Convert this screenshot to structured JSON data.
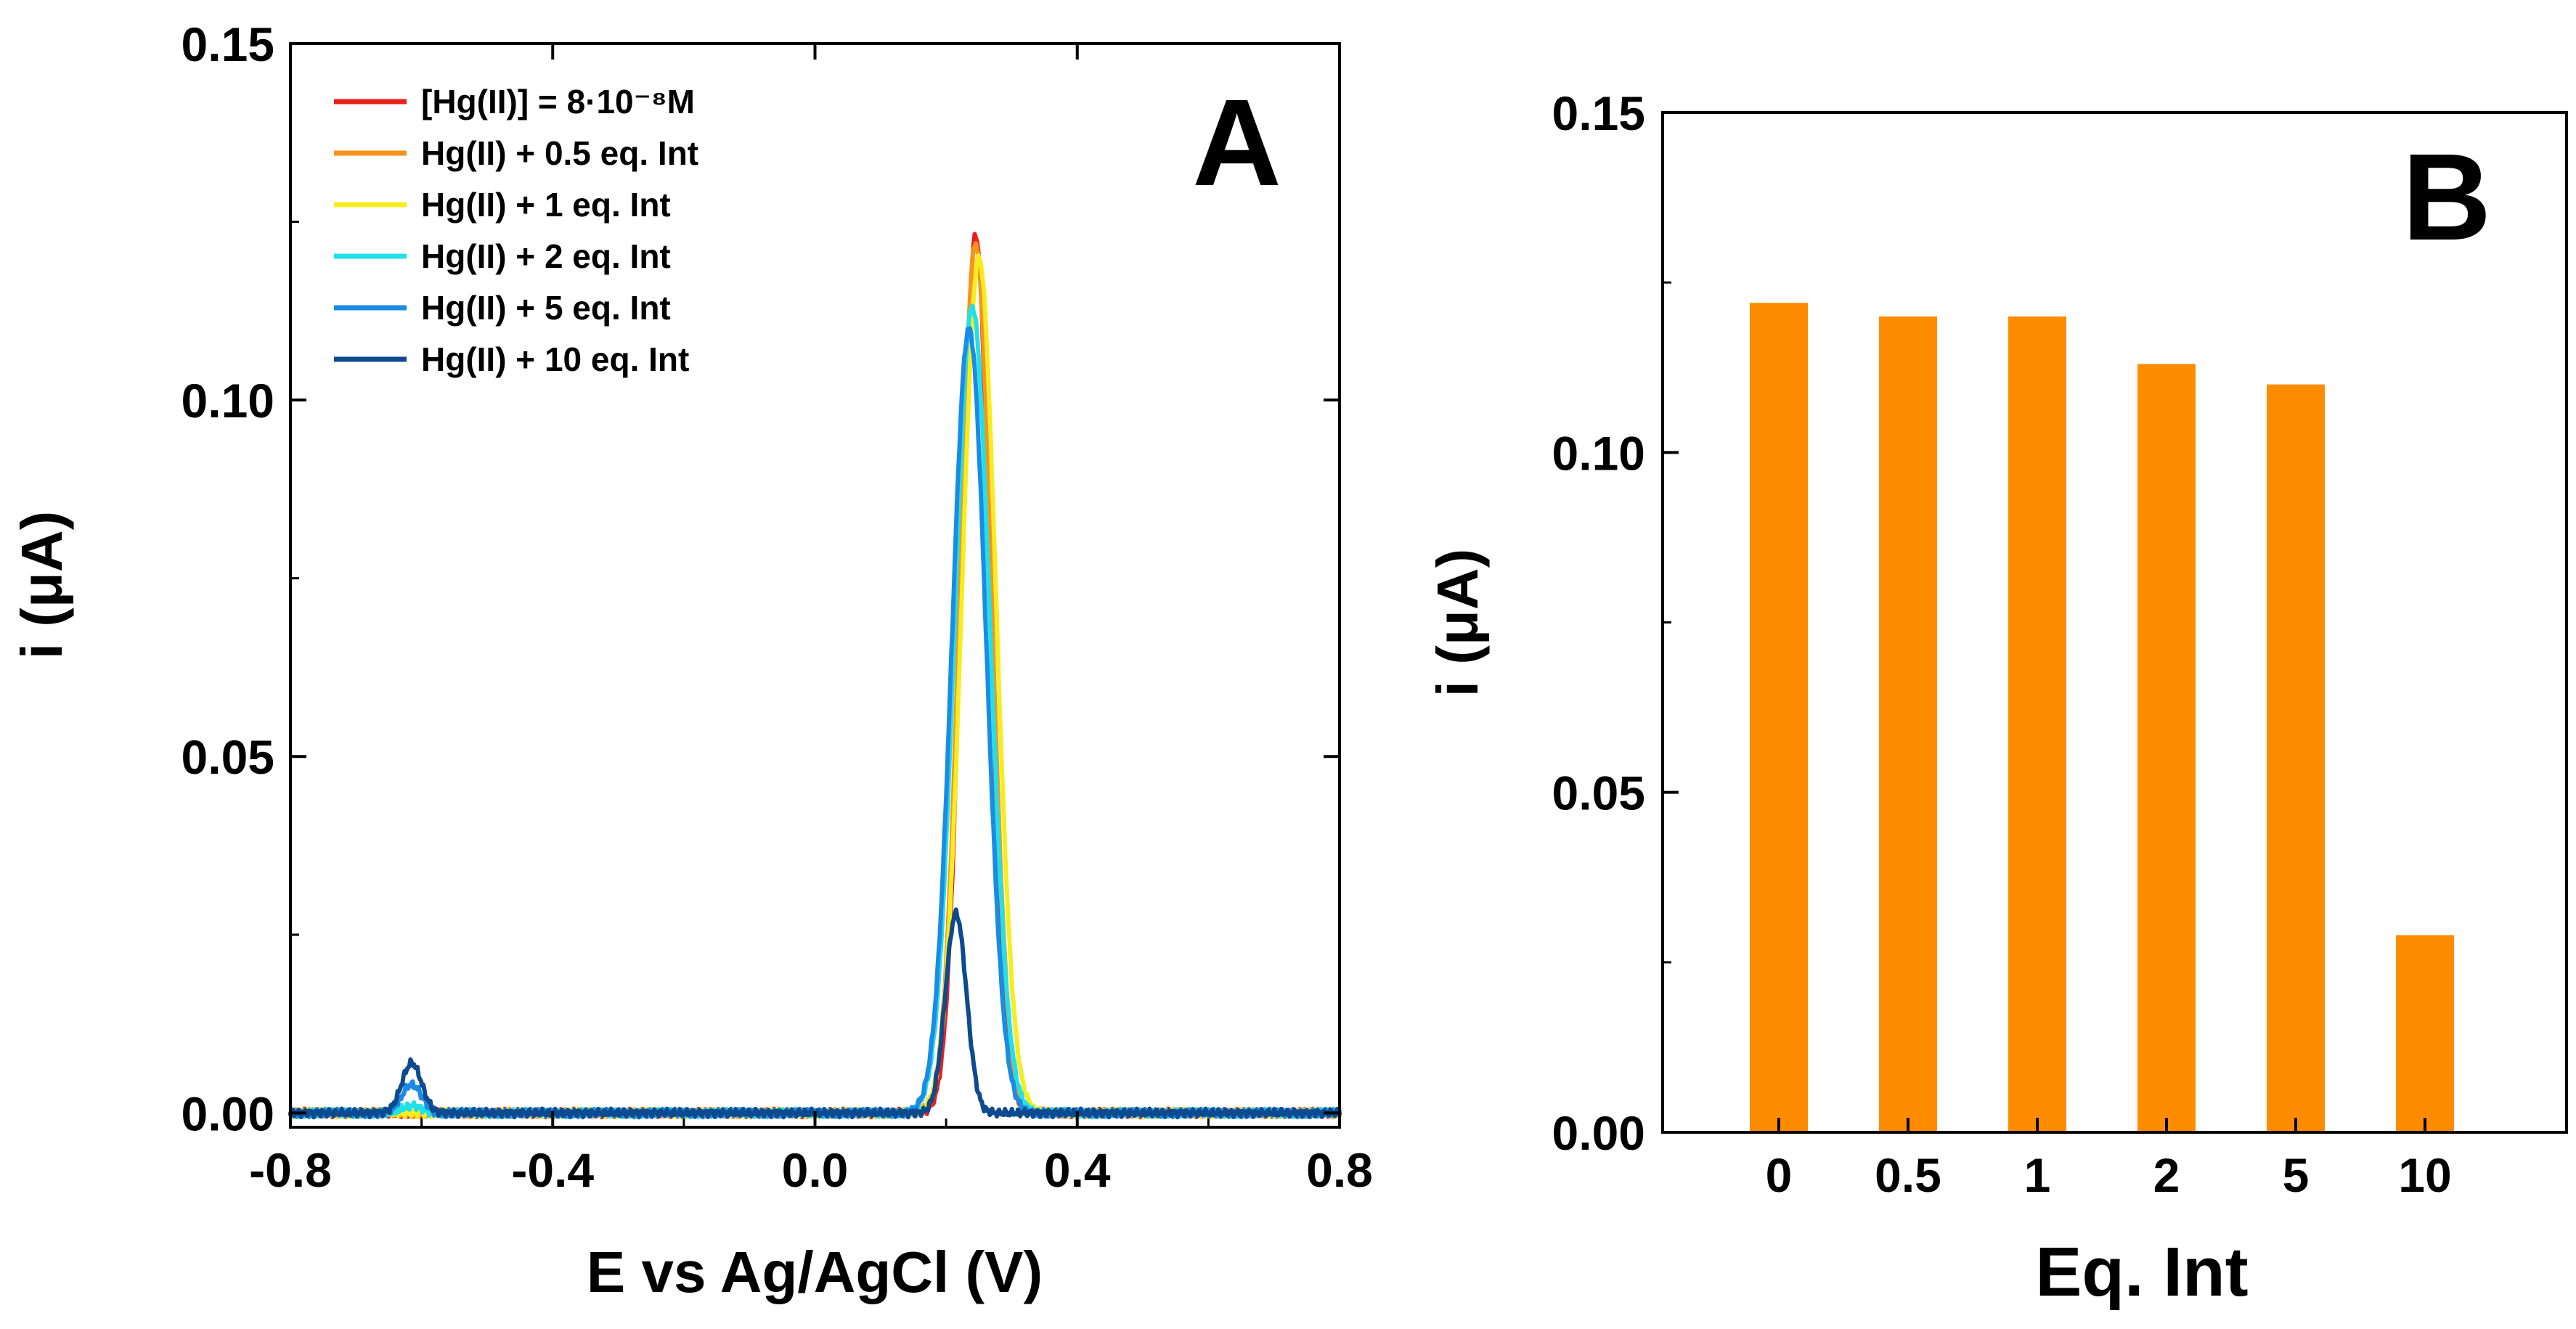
{
  "chart_data": [
    {
      "type": "line",
      "panel_label": "A",
      "xlabel": "E vs Ag/AgCl (V)",
      "ylabel": "i (μA)",
      "xlim": [
        -0.8,
        0.8
      ],
      "ylim": [
        -0.002,
        0.15
      ],
      "xticks": [
        {
          "value": -0.8,
          "label": "-0.8"
        },
        {
          "value": -0.4,
          "label": "-0.4"
        },
        {
          "value": 0.0,
          "label": "0.0"
        },
        {
          "value": 0.4,
          "label": "0.4"
        },
        {
          "value": 0.8,
          "label": "0.8"
        }
      ],
      "yticks": [
        {
          "value": 0.0,
          "label": "0.00"
        },
        {
          "value": 0.05,
          "label": "0.05"
        },
        {
          "value": 0.1,
          "label": "0.10"
        },
        {
          "value": 0.15,
          "label": "0.15"
        }
      ],
      "legend_position": "top-left",
      "series": [
        {
          "name": "[Hg(II)] = 8·10⁻⁸M",
          "color": "#e8201c",
          "peak_x": 0.245,
          "peak_height": 0.123,
          "width": 0.022,
          "second_peak_height": 0.0
        },
        {
          "name": "Hg(II) + 0.5 eq. Int",
          "color": "#f7941d",
          "peak_x": 0.245,
          "peak_height": 0.122,
          "width": 0.024,
          "second_peak_height": 0.0
        },
        {
          "name": "Hg(II) + 1 eq. Int",
          "color": "#f5ed1f",
          "peak_x": 0.25,
          "peak_height": 0.12,
          "width": 0.026,
          "second_peak_height": 0.0
        },
        {
          "name": "Hg(II) + 2 eq. Int",
          "color": "#22e0e8",
          "peak_x": 0.24,
          "peak_height": 0.113,
          "width": 0.027,
          "second_peak_height": 0.001
        },
        {
          "name": "Hg(II) + 5 eq. Int",
          "color": "#1a8be6",
          "peak_x": 0.235,
          "peak_height": 0.11,
          "width": 0.026,
          "second_peak_height": 0.004
        },
        {
          "name": "Hg(II) + 10 eq. Int",
          "color": "#0d4a8f",
          "peak_x": 0.215,
          "peak_height": 0.028,
          "width": 0.016,
          "second_peak_height": 0.007
        }
      ],
      "second_peak_x": -0.615
    },
    {
      "type": "bar",
      "panel_label": "B",
      "xlabel": "Eq. Int",
      "ylabel": "i (μA)",
      "ylim": [
        0,
        0.15
      ],
      "yticks": [
        {
          "value": 0.0,
          "label": "0.00"
        },
        {
          "value": 0.05,
          "label": "0.05"
        },
        {
          "value": 0.1,
          "label": "0.10"
        },
        {
          "value": 0.15,
          "label": "0.15"
        }
      ],
      "categories": [
        "0",
        "0.5",
        "1",
        "2",
        "5",
        "10"
      ],
      "values": [
        0.122,
        0.12,
        0.12,
        0.113,
        0.11,
        0.029
      ],
      "bar_color": "#ff8c00"
    }
  ]
}
